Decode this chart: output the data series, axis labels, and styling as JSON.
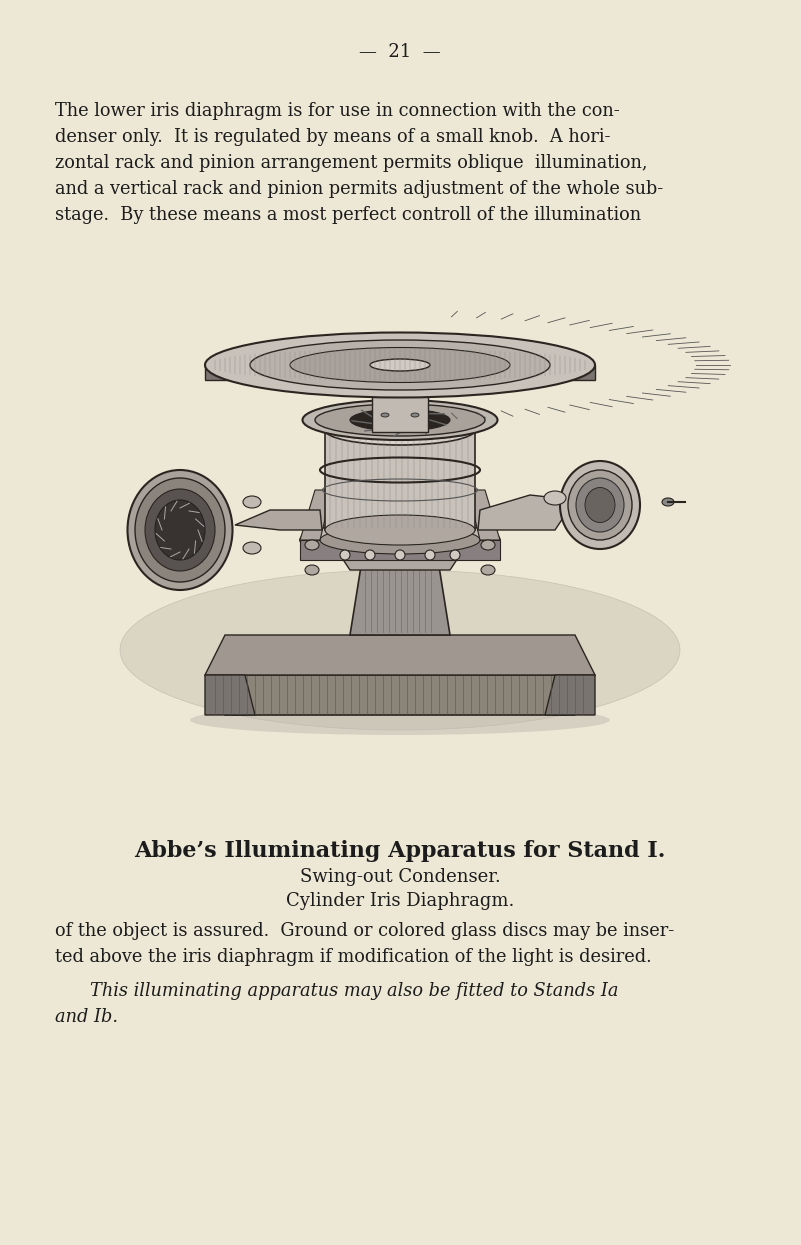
{
  "background_color": "#ede8d5",
  "page_number": "21",
  "top_text_lines": [
    "The lower iris diaphragm is for use in connection with the con-",
    "denser only.  It is regulated by means of a small knob.  A hori-",
    "zontal rack and pinion arrangement permits oblique  illumination,",
    "and a vertical rack and pinion permits adjustment of the whole sub-",
    "stage.  By these means a most perfect controll of the illumination"
  ],
  "caption_line1": "Abbe’s Illuminating Apparatus for Stand I.",
  "caption_line2": "Swing-out Condenser.",
  "caption_line3": "Cylinder Iris Diaphragm.",
  "bottom_text_lines": [
    "of the object is assured.  Ground or colored glass discs may be inser-",
    "ted above the iris diaphragm if modification of the light is desired."
  ],
  "bottom_italic_line1": "This illuminating apparatus may also be fitted to Stands Ia",
  "bottom_italic_line2": "and Ib.",
  "text_color": "#1c1c1c",
  "dark_color": "#2a2520",
  "mid_color": "#6a6055",
  "light_color": "#b0aa9e"
}
